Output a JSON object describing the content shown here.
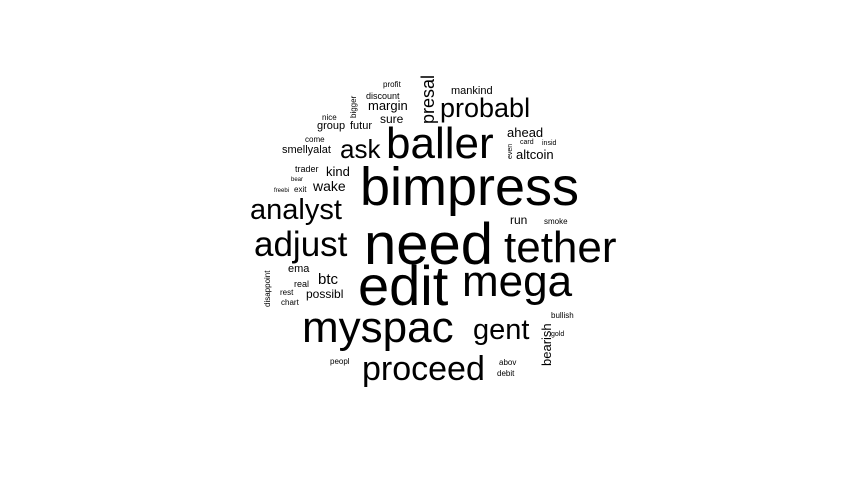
{
  "word_cloud": {
    "text_color": "#000000",
    "background_color": "#ffffff",
    "words": [
      {
        "text": "bimpress"
      },
      {
        "text": "need"
      },
      {
        "text": "tether"
      },
      {
        "text": "edit"
      },
      {
        "text": "mega"
      },
      {
        "text": "baller"
      },
      {
        "text": "myspac"
      },
      {
        "text": "adjust"
      },
      {
        "text": "analyst"
      },
      {
        "text": "probabl"
      },
      {
        "text": "proceed"
      },
      {
        "text": "gent"
      },
      {
        "text": "ask"
      },
      {
        "text": "presal"
      },
      {
        "text": "bearish"
      },
      {
        "text": "margin"
      },
      {
        "text": "ahead"
      },
      {
        "text": "altcoin"
      },
      {
        "text": "kind"
      },
      {
        "text": "wake"
      },
      {
        "text": "btc"
      },
      {
        "text": "possibl"
      },
      {
        "text": "run"
      },
      {
        "text": "sure"
      },
      {
        "text": "futur"
      },
      {
        "text": "group"
      },
      {
        "text": "smellyalat"
      },
      {
        "text": "mankind"
      },
      {
        "text": "discount"
      },
      {
        "text": "profit"
      },
      {
        "text": "bigger"
      },
      {
        "text": "nice"
      },
      {
        "text": "come"
      },
      {
        "text": "trader"
      },
      {
        "text": "bear"
      },
      {
        "text": "freebi"
      },
      {
        "text": "exit"
      },
      {
        "text": "ema"
      },
      {
        "text": "real"
      },
      {
        "text": "rest"
      },
      {
        "text": "chart"
      },
      {
        "text": "disappoint"
      },
      {
        "text": "peopl"
      },
      {
        "text": "abov"
      },
      {
        "text": "debit"
      },
      {
        "text": "bullish"
      },
      {
        "text": "gold"
      },
      {
        "text": "smoke"
      },
      {
        "text": "card"
      },
      {
        "text": "insid"
      },
      {
        "text": "even"
      }
    ]
  }
}
